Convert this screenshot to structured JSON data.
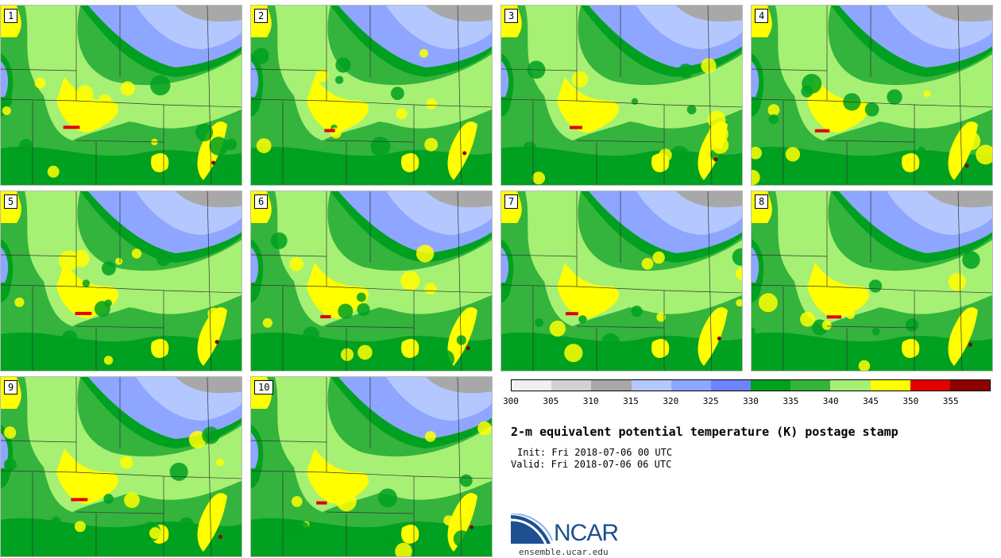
{
  "panels": [
    {
      "number": "1"
    },
    {
      "number": "2"
    },
    {
      "number": "3"
    },
    {
      "number": "4"
    },
    {
      "number": "5"
    },
    {
      "number": "6"
    },
    {
      "number": "7"
    },
    {
      "number": "8"
    },
    {
      "number": "9"
    },
    {
      "number": "10"
    }
  ],
  "colorbar": {
    "colors": [
      "#f0f0f0",
      "#d2d2d2",
      "#a8a8a8",
      "#b4c8ff",
      "#8ea6ff",
      "#6e84ff",
      "#00a020",
      "#34b43c",
      "#a6f074",
      "#ffff00",
      "#e00000",
      "#8c0000"
    ],
    "ticks": [
      "300",
      "305",
      "310",
      "315",
      "320",
      "325",
      "330",
      "335",
      "340",
      "345",
      "350",
      "355"
    ]
  },
  "map_colors": {
    "gray": "#a8a8a8",
    "lightblue": "#b4c8ff",
    "blue": "#8ea6ff",
    "darkgreen": "#00a020",
    "green": "#34b43c",
    "lightgreen": "#a6f074",
    "yellow": "#ffff00",
    "red": "#e00000",
    "darkred": "#8c0000"
  },
  "title": "2-m equivalent potential temperature (K) postage stamp",
  "init": "Init: Fri 2018-07-06 00 UTC",
  "valid": "Valid: Fri 2018-07-06 06 UTC",
  "logo": {
    "text": "NCAR",
    "url": "ensemble.ucar.edu"
  }
}
